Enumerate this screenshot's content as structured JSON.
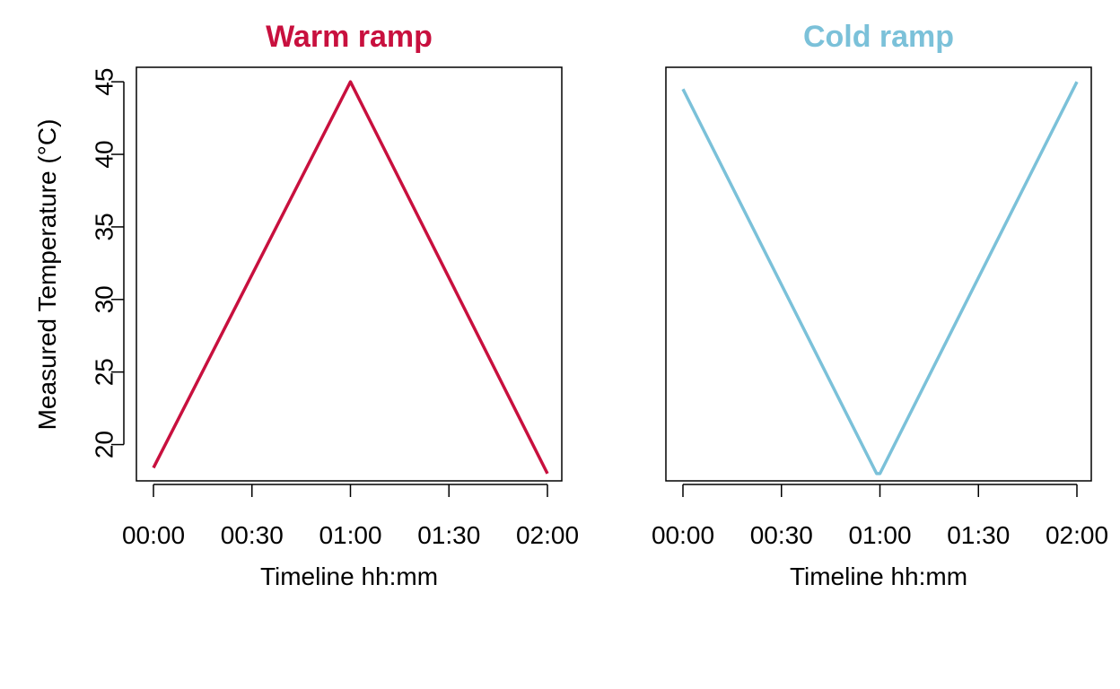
{
  "chart_data": [
    {
      "type": "line",
      "title": "Warm ramp",
      "xlabel": "Timeline hh:mm",
      "ylabel": "Measured Temperature (°C)",
      "color": "#C8103E",
      "x_ticks": [
        "00:00",
        "00:30",
        "01:00",
        "01:30",
        "02:00"
      ],
      "y_ticks": [
        20,
        25,
        30,
        35,
        40,
        45
      ],
      "xlim": [
        "00:00",
        "02:00"
      ],
      "ylim": [
        17.5,
        46
      ],
      "x": [
        "00:00",
        "01:00",
        "02:00"
      ],
      "values": [
        18.4,
        45.0,
        18.0
      ],
      "show_y_axis": true
    },
    {
      "type": "line",
      "title": "Cold ramp",
      "xlabel": "Timeline hh:mm",
      "ylabel": "",
      "color": "#7BC1D9",
      "x_ticks": [
        "00:00",
        "00:30",
        "01:00",
        "01:30",
        "02:00"
      ],
      "y_ticks": [],
      "xlim": [
        "00:00",
        "02:00"
      ],
      "ylim": [
        17.5,
        46
      ],
      "x": [
        "00:00",
        "00:59",
        "01:00",
        "02:00"
      ],
      "values": [
        44.5,
        18.0,
        18.0,
        45.0
      ],
      "show_y_axis": false
    }
  ]
}
